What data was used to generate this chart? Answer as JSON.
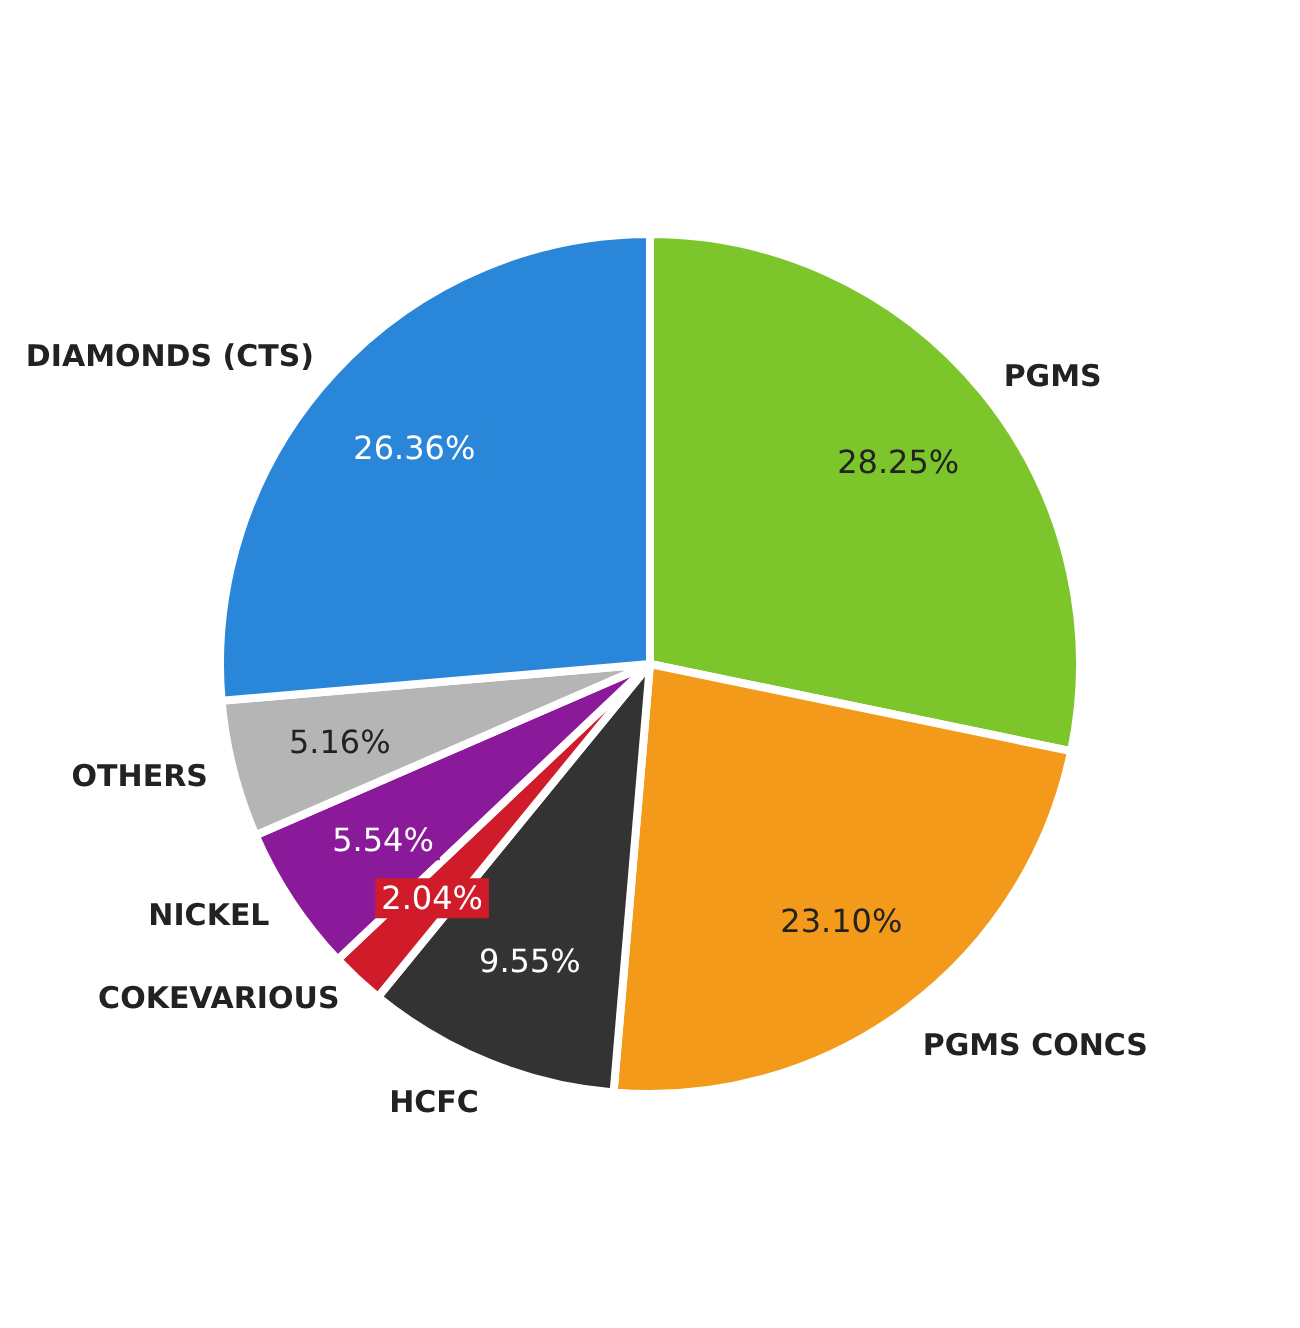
{
  "chart_data": {
    "type": "pie",
    "categories": [
      "PGMS",
      "PGMS CONCS",
      "HCFC",
      "COKEVARIOUS",
      "NICKEL",
      "OTHERS",
      "DIAMONDS (CTS)"
    ],
    "values": [
      28.25,
      23.1,
      9.55,
      2.04,
      5.54,
      5.16,
      26.36
    ],
    "value_labels": [
      "28.25%",
      "23.10%",
      "9.55%",
      "2.04%",
      "5.54%",
      "5.16%",
      "26.36%"
    ],
    "colors": [
      "#7cc62c",
      "#f39a1a",
      "#333333",
      "#d01c2a",
      "#8a1a9a",
      "#b5b5b5",
      "#2a86d8"
    ]
  }
}
